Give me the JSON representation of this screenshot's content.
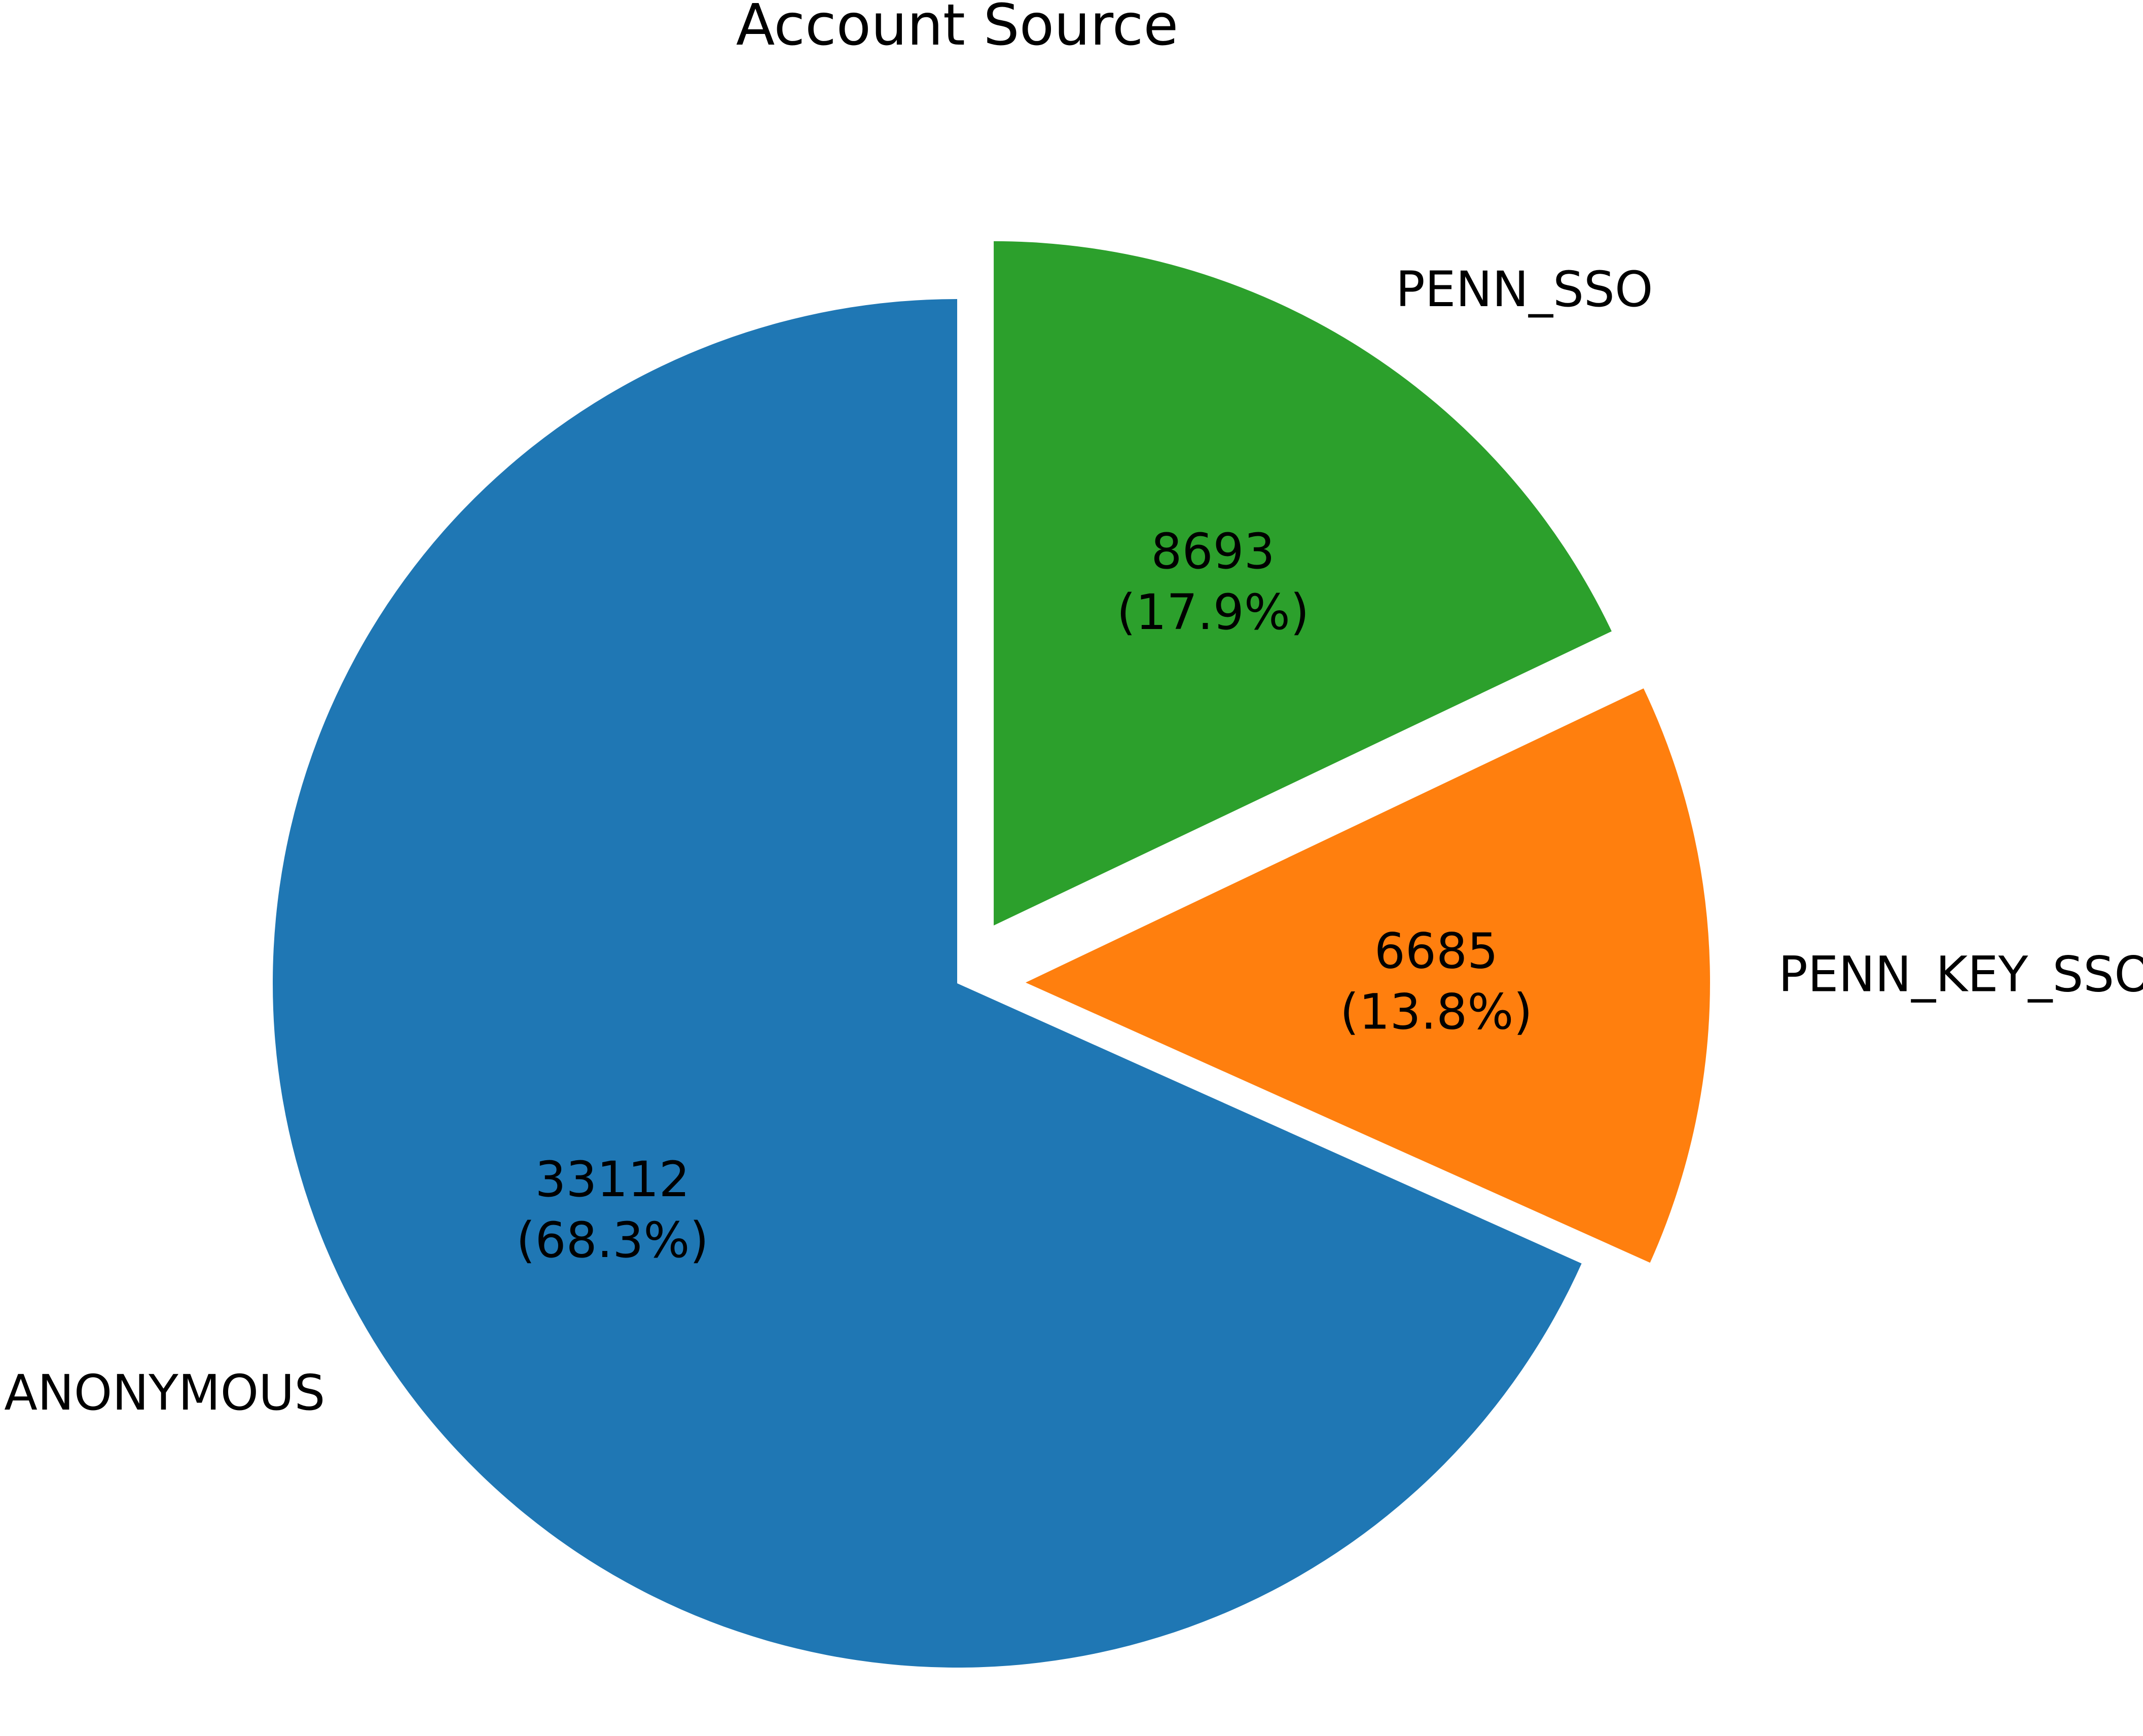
{
  "chart_data": {
    "type": "pie",
    "title": "Account Source",
    "categories": [
      "ANONYMOUS",
      "PENN_KEY_SSO",
      "PENN_SSO"
    ],
    "values": [
      33112,
      6685,
      8693
    ],
    "percent_labels": [
      "(68.3%)",
      "(13.8%)",
      "(17.9%)"
    ],
    "colors": [
      "#1f77b4",
      "#ff7f0e",
      "#2ca02c"
    ],
    "explode": [
      0,
      0.1,
      0.1
    ],
    "start_angle_deg": 90,
    "direction": "counterclockwise",
    "legend": "none"
  }
}
